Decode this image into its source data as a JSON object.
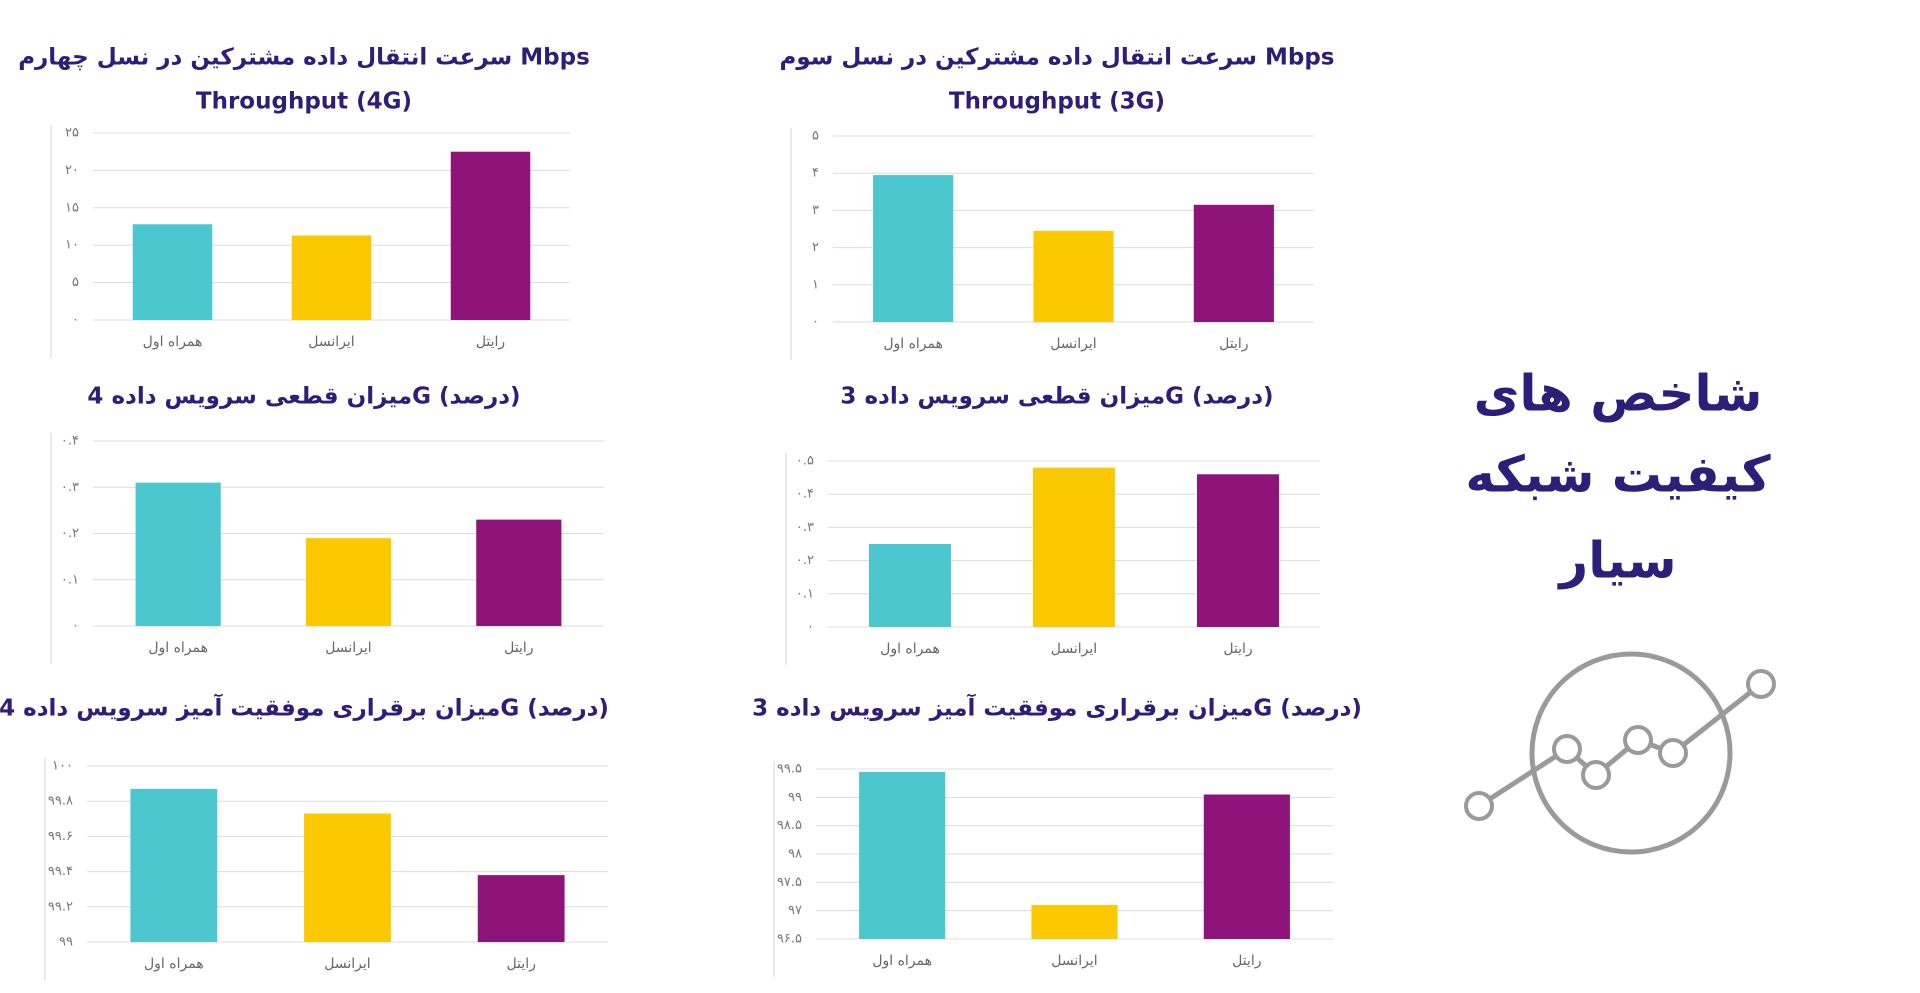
{
  "page_title": [
    "شاخص های",
    "کیفیت شبکه",
    "سیار"
  ],
  "chart_data": [
    {
      "type": "bar",
      "title": "سرعت انتقال داده مشترکین در نسل چهارم Mbps",
      "subtitle": "Throughput (4G)",
      "categories": [
        "همراه اول",
        "ایرانسل",
        "رایتل"
      ],
      "values": [
        12.8,
        11.3,
        22.5
      ],
      "colors": [
        "#4cc6cf",
        "#fcc800",
        "#8e1479"
      ],
      "ylim": [
        0,
        25
      ],
      "yticks": [
        {
          "value": 0,
          "label": "۰"
        },
        {
          "value": 5,
          "label": "۵"
        },
        {
          "value": 10,
          "label": "۱۰"
        },
        {
          "value": 15,
          "label": "۱۵"
        },
        {
          "value": 20,
          "label": "۲۰"
        },
        {
          "value": 25,
          "label": "۲۵"
        }
      ],
      "grid": true
    },
    {
      "type": "bar",
      "title": "سرعت انتقال داده مشترکین در نسل سوم Mbps",
      "subtitle": "Throughput (3G)",
      "categories": [
        "همراه اول",
        "ایرانسل",
        "رایتل"
      ],
      "values": [
        3.95,
        2.45,
        3.15
      ],
      "colors": [
        "#4cc6cf",
        "#fcc800",
        "#8e1479"
      ],
      "ylim": [
        0,
        5
      ],
      "yticks": [
        {
          "value": 0,
          "label": "۰"
        },
        {
          "value": 1,
          "label": "۱"
        },
        {
          "value": 2,
          "label": "۲"
        },
        {
          "value": 3,
          "label": "۳"
        },
        {
          "value": 4,
          "label": "۴"
        },
        {
          "value": 5,
          "label": "۵"
        }
      ],
      "grid": true
    },
    {
      "type": "bar",
      "title": "میزان قطعی سرویس داده 4G (درصد)",
      "categories": [
        "همراه اول",
        "ایرانسل",
        "رایتل"
      ],
      "values": [
        0.31,
        0.19,
        0.23
      ],
      "colors": [
        "#4cc6cf",
        "#fcc800",
        "#8e1479"
      ],
      "ylim": [
        0,
        0.4
      ],
      "yticks": [
        {
          "value": 0,
          "label": "۰"
        },
        {
          "value": 0.1,
          "label": "۰.۱"
        },
        {
          "value": 0.2,
          "label": "۰.۲"
        },
        {
          "value": 0.3,
          "label": "۰.۳"
        },
        {
          "value": 0.4,
          "label": "۰.۴"
        }
      ],
      "grid": true
    },
    {
      "type": "bar",
      "title": "میزان قطعی سرویس داده 3G (درصد)",
      "categories": [
        "همراه اول",
        "ایرانسل",
        "رایتل"
      ],
      "values": [
        0.25,
        0.48,
        0.46
      ],
      "colors": [
        "#4cc6cf",
        "#fcc800",
        "#8e1479"
      ],
      "ylim": [
        0,
        0.5
      ],
      "yticks": [
        {
          "value": 0,
          "label": "۰"
        },
        {
          "value": 0.1,
          "label": "۰.۱"
        },
        {
          "value": 0.2,
          "label": "۰.۲"
        },
        {
          "value": 0.3,
          "label": "۰.۳"
        },
        {
          "value": 0.4,
          "label": "۰.۴"
        },
        {
          "value": 0.5,
          "label": "۰.۵"
        }
      ],
      "grid": true
    },
    {
      "type": "bar",
      "title": "میزان برقراری موفقیت آمیز سرویس داده 4G (درصد)",
      "categories": [
        "همراه اول",
        "ایرانسل",
        "رایتل"
      ],
      "values": [
        99.87,
        99.73,
        99.38
      ],
      "colors": [
        "#4cc6cf",
        "#fcc800",
        "#8e1479"
      ],
      "ylim": [
        99,
        100
      ],
      "yticks": [
        {
          "value": 99,
          "label": "۹۹"
        },
        {
          "value": 99.2,
          "label": "۹۹.۲"
        },
        {
          "value": 99.4,
          "label": "۹۹.۴"
        },
        {
          "value": 99.6,
          "label": "۹۹.۶"
        },
        {
          "value": 99.8,
          "label": "۹۹.۸"
        },
        {
          "value": 100,
          "label": "۱۰۰"
        }
      ],
      "grid": true
    },
    {
      "type": "bar",
      "title": "میزان برقراری موفقیت آمیز سرویس داده 3G (درصد)",
      "categories": [
        "همراه اول",
        "ایرانسل",
        "رایتل"
      ],
      "values": [
        99.45,
        97.1,
        99.05
      ],
      "colors": [
        "#4cc6cf",
        "#fcc800",
        "#8e1479"
      ],
      "ylim": [
        96.5,
        99.5
      ],
      "yticks": [
        {
          "value": 96.5,
          "label": "۹۶.۵"
        },
        {
          "value": 97,
          "label": "۹۷"
        },
        {
          "value": 97.5,
          "label": "۹۷.۵"
        },
        {
          "value": 98,
          "label": "۹۸"
        },
        {
          "value": 98.5,
          "label": "۹۸.۵"
        },
        {
          "value": 99,
          "label": "۹۹"
        },
        {
          "value": 99.5,
          "label": "۹۹.۵"
        }
      ],
      "grid": true
    }
  ]
}
